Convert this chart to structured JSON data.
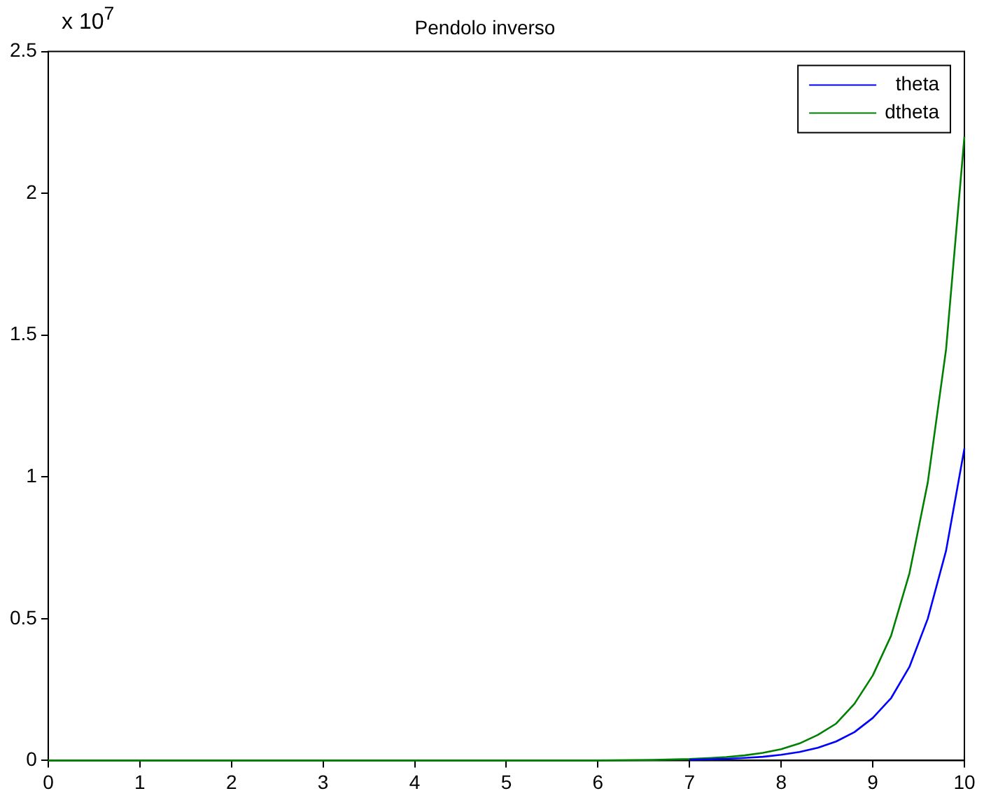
{
  "chart_data": {
    "type": "line",
    "title": "Pendolo inverso",
    "annotations": [
      "x 10$^{7}$"
    ],
    "x": [
      0,
      1,
      2,
      3,
      4,
      5,
      6,
      6.6,
      7,
      7.2,
      7.4,
      7.6,
      7.8,
      8,
      8.2,
      8.4,
      8.6,
      8.8,
      9,
      9.2,
      9.4,
      9.6,
      9.8,
      10
    ],
    "series": [
      {
        "name": "theta",
        "color": "#0000ff",
        "values": [
          null,
          null,
          null,
          null,
          null,
          null,
          null,
          null,
          0.003,
          0.004,
          0.006,
          0.009,
          0.013,
          0.02,
          0.03,
          0.045,
          0.067,
          0.1,
          0.15,
          0.22,
          0.33,
          0.5,
          0.74,
          1.1
        ]
      },
      {
        "name": "dtheta",
        "color": "#008000",
        "values": [
          0,
          0,
          0,
          0,
          0,
          0,
          0,
          0.002,
          0.005,
          0.008,
          0.012,
          0.018,
          0.027,
          0.04,
          0.06,
          0.09,
          0.13,
          0.2,
          0.3,
          0.44,
          0.66,
          0.98,
          1.45,
          2.2
        ]
      }
    ],
    "xlim": [
      0,
      10
    ],
    "xticks": [
      0,
      1,
      2,
      3,
      4,
      5,
      6,
      7,
      8,
      9,
      10
    ],
    "ylim": [
      0,
      2.5
    ],
    "yticks": [
      0,
      0.5,
      1,
      1.5,
      2,
      2.5
    ],
    "grid": false,
    "legend": "top right",
    "marker": "none",
    "line_style": "solid"
  }
}
